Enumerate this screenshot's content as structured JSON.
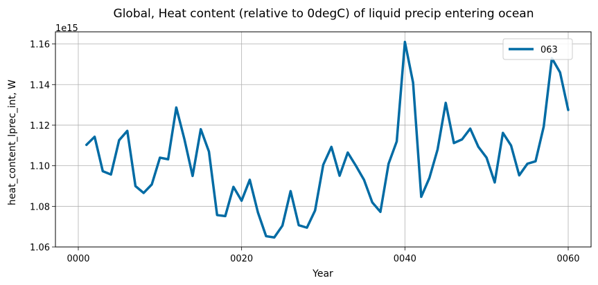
{
  "chart_data": {
    "type": "line",
    "title": "Global, Heat content (relative to 0degC) of liquid precip entering ocean",
    "xlabel": "Year",
    "ylabel": "heat_content_lprec_int, W",
    "y_offset_label": "1e15",
    "xlim": [
      -2.8,
      62.8
    ],
    "ylim": [
      1.06,
      1.166
    ],
    "x_ticks": [
      0,
      20,
      40,
      60
    ],
    "x_tick_labels": [
      "0000",
      "0020",
      "0040",
      "0060"
    ],
    "y_ticks": [
      1.06,
      1.08,
      1.1,
      1.12,
      1.14,
      1.16
    ],
    "y_tick_labels": [
      "1.06",
      "1.08",
      "1.10",
      "1.12",
      "1.14",
      "1.16"
    ],
    "grid": true,
    "legend_position": "top-right",
    "series": [
      {
        "name": "063",
        "color": "#006ba4",
        "x": [
          1,
          2,
          3,
          4,
          5,
          6,
          7,
          8,
          9,
          10,
          11,
          12,
          13,
          14,
          15,
          16,
          17,
          18,
          19,
          20,
          21,
          22,
          23,
          24,
          25,
          26,
          27,
          28,
          29,
          30,
          31,
          32,
          33,
          34,
          35,
          36,
          37,
          38,
          39,
          40,
          41,
          42,
          43,
          44,
          45,
          46,
          47,
          48,
          49,
          50,
          51,
          52,
          53,
          54,
          55,
          56,
          57,
          58,
          59,
          60
        ],
        "values": [
          1.1103,
          1.1143,
          1.0973,
          1.0957,
          1.1126,
          1.1172,
          1.09,
          1.0866,
          1.0908,
          1.104,
          1.1032,
          1.1287,
          1.113,
          1.095,
          1.118,
          1.107,
          1.0757,
          1.0752,
          1.0896,
          1.0828,
          1.0931,
          1.077,
          1.0653,
          1.0647,
          1.0705,
          1.0875,
          1.0707,
          1.0695,
          1.078,
          1.1005,
          1.1093,
          1.0951,
          1.1065,
          1.1,
          1.093,
          1.082,
          1.0773,
          1.101,
          1.112,
          1.161,
          1.141,
          1.0847,
          1.094,
          1.108,
          1.131,
          1.1112,
          1.113,
          1.1183,
          1.1093,
          1.104,
          1.0918,
          1.1162,
          1.11,
          1.0953,
          1.101,
          1.1022,
          1.1193,
          1.153,
          1.146,
          1.1275
        ]
      }
    ]
  }
}
